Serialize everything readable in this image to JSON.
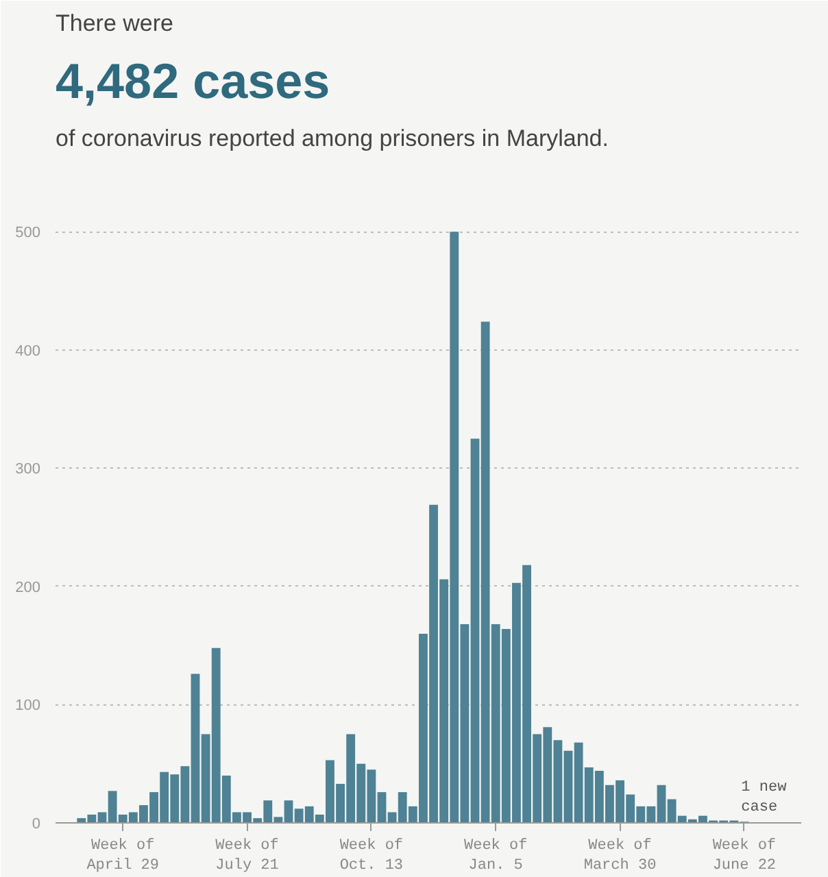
{
  "chart_data": {
    "type": "bar",
    "title": "4,482 cases",
    "subtitle": "of coronavirus reported among prisoners in Maryland.",
    "annotations": [
      "There were",
      {
        "text": "1 new case",
        "x": "Week of June 22",
        "y": 1
      }
    ],
    "categories": [
      null,
      null,
      null,
      null,
      "Week of April 29",
      null,
      null,
      null,
      null,
      null,
      null,
      null,
      null,
      null,
      null,
      null,
      "Week of July 21",
      null,
      null,
      null,
      null,
      null,
      null,
      null,
      null,
      null,
      null,
      null,
      "Week of Oct. 13",
      null,
      null,
      null,
      null,
      null,
      null,
      null,
      null,
      null,
      null,
      null,
      "Week of Jan. 5",
      null,
      null,
      null,
      null,
      null,
      null,
      null,
      null,
      null,
      null,
      null,
      "Week of March 30",
      null,
      null,
      null,
      null,
      null,
      null,
      null,
      null,
      null,
      null,
      null,
      "Week of June 22"
    ],
    "values": [
      4,
      7,
      9,
      27,
      7,
      9,
      15,
      26,
      43,
      41,
      48,
      126,
      75,
      148,
      40,
      9,
      9,
      4,
      19,
      5,
      19,
      12,
      14,
      7,
      53,
      33,
      75,
      50,
      45,
      26,
      9,
      26,
      14,
      160,
      269,
      206,
      500,
      168,
      325,
      424,
      168,
      164,
      203,
      218,
      75,
      81,
      70,
      61,
      68,
      47,
      44,
      32,
      36,
      24,
      14,
      14,
      32,
      20,
      6,
      3,
      6,
      2,
      2,
      2,
      1
    ],
    "color": "#4e8294",
    "ylim": [
      0,
      510
    ],
    "yticks": [
      0,
      100,
      200,
      300,
      400,
      500
    ],
    "grid": "y"
  }
}
